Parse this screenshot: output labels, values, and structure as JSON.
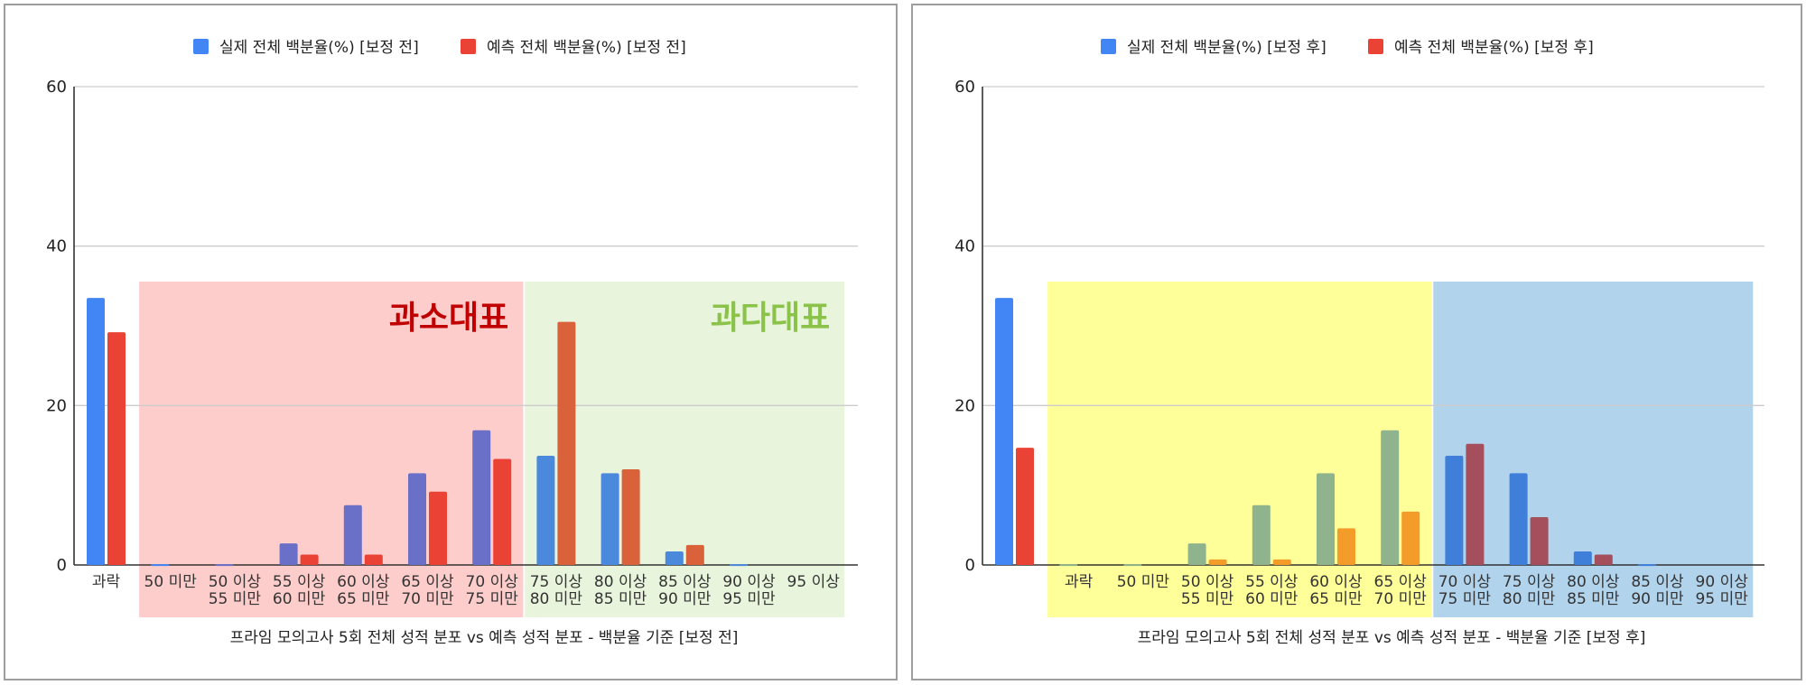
{
  "chart_data": [
    {
      "type": "bar",
      "title": "",
      "xlabel": "프라임 모의고사 5회 전체 성적 분포 vs 예측 성적 분포 - 백분율 기준 [보정 전]",
      "ylabel": "",
      "ylim": [
        0,
        60
      ],
      "yticks": [
        0,
        20,
        40,
        60
      ],
      "grid": true,
      "legend_position": "top",
      "categories": [
        "과락",
        "50 미만",
        "50 이상\n55 미만",
        "55 이상\n60 미만",
        "60 이상\n65 미만",
        "65 이상\n70 미만",
        "70 이상\n75 미만",
        "75 이상\n80 미만",
        "80 이상\n85 미만",
        "85 이상\n90 미만",
        "90 이상\n95 미만",
        "95 이상"
      ],
      "series": [
        {
          "name": "실제 전체 백분율(%) [보정 전]",
          "color": "#4285f4",
          "values": [
            33.5,
            0.1,
            0.1,
            2.7,
            7.5,
            11.5,
            16.9,
            13.7,
            11.5,
            1.7,
            0.1,
            0
          ]
        },
        {
          "name": "예측 전체 백분율(%) [보정 전]",
          "color": "#ea4335",
          "values": [
            29.2,
            0,
            0,
            1.3,
            1.3,
            9.2,
            13.3,
            30.5,
            12.0,
            2.5,
            0,
            0
          ]
        }
      ],
      "bar_colors": [
        [
          "#4285f4",
          "#ea4335"
        ],
        [
          "#4285f4",
          "#ea4335"
        ],
        [
          "#6a6fc8",
          "#ea4335"
        ],
        [
          "#6a6fc8",
          "#ea4335"
        ],
        [
          "#6a6fc8",
          "#ea4335"
        ],
        [
          "#6a6fc8",
          "#ea4335"
        ],
        [
          "#6a6fc8",
          "#ea4335"
        ],
        [
          "#4a89dc",
          "#d9623b"
        ],
        [
          "#4a89dc",
          "#d9623b"
        ],
        [
          "#4a89dc",
          "#d9623b"
        ],
        [
          "#4a89dc",
          "#d9623b"
        ],
        [
          "#4a89dc",
          "#d9623b"
        ]
      ],
      "regions": [
        {
          "from": 1,
          "to": 6,
          "color": "#fdcdcc",
          "label": "과소대표",
          "label_color": "#c00000"
        },
        {
          "from": 7,
          "to": 11,
          "color": "#e8f4dc",
          "label": "과다대표",
          "label_color": "#8bc34a"
        }
      ]
    },
    {
      "type": "bar",
      "title": "",
      "xlabel": "프라임 모의고사 5회 전체 성적 분포 vs 예측 성적 분포 - 백분율 기준 [보정 후]",
      "ylabel": "",
      "ylim": [
        0,
        60
      ],
      "yticks": [
        0,
        20,
        40,
        60
      ],
      "grid": true,
      "legend_position": "top",
      "categories": [
        "",
        "과락",
        "50 미만",
        "50 이상\n55 미만",
        "55 이상\n60 미만",
        "60 이상\n65 미만",
        "65 이상\n70 미만",
        "70 이상\n75 미만",
        "75 이상\n80 미만",
        "80 이상\n85 미만",
        "85 이상\n90 미만",
        "90 이상\n95 미만"
      ],
      "series": [
        {
          "name": "실제 전체 백분율(%) [보정 후]",
          "color": "#4285f4",
          "values": [
            33.5,
            0.1,
            0.1,
            2.7,
            7.5,
            11.5,
            16.9,
            13.7,
            11.5,
            1.7,
            0.1,
            0
          ]
        },
        {
          "name": "예측 전체 백분율(%) [보정 후]",
          "color": "#ea4335",
          "values": [
            14.7,
            0,
            0,
            0.7,
            0.7,
            4.6,
            6.7,
            15.2,
            6.0,
            1.3,
            0,
            0
          ]
        }
      ],
      "bar_colors": [
        [
          "#4285f4",
          "#ea4335"
        ],
        [
          "#8fb38d",
          "#f39c2a"
        ],
        [
          "#8fb38d",
          "#f39c2a"
        ],
        [
          "#8fb38d",
          "#f39c2a"
        ],
        [
          "#8fb38d",
          "#f39c2a"
        ],
        [
          "#8fb38d",
          "#f39c2a"
        ],
        [
          "#8fb38d",
          "#f39c2a"
        ],
        [
          "#3f7fd9",
          "#a54e5c"
        ],
        [
          "#3f7fd9",
          "#a54e5c"
        ],
        [
          "#3f7fd9",
          "#a54e5c"
        ],
        [
          "#3f7fd9",
          "#a54e5c"
        ],
        [
          "#3f7fd9",
          "#a54e5c"
        ]
      ],
      "regions": [
        {
          "from": 1,
          "to": 6,
          "color": "#ffff99",
          "label": "",
          "label_color": ""
        },
        {
          "from": 7,
          "to": 11,
          "color": "#b2d3ec",
          "label": "",
          "label_color": ""
        }
      ]
    }
  ]
}
